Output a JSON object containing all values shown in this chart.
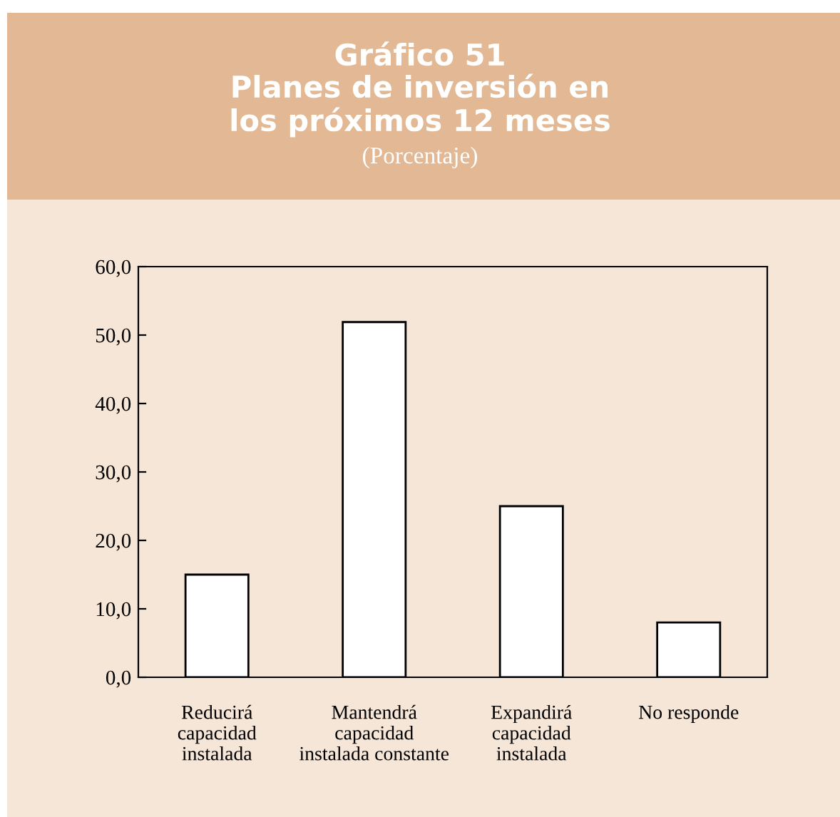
{
  "chart_data": {
    "type": "bar",
    "title": "Gráfico 51\nPlanes de inversión en\nlos próximos 12 meses",
    "subtitle": "(Porcentaje)",
    "categories": [
      "Reducirá\ncapacidad\ninstalada",
      "Mantendrá\ncapacidad\ninstalada constante",
      "Expandirá\ncapacidad\ninstalada",
      "No responde"
    ],
    "values": [
      15.0,
      51.9,
      25.0,
      8.0
    ],
    "color": "#ffffff",
    "ylim": [
      0,
      60
    ],
    "yticks": [
      {
        "value": 0,
        "label": "0,0"
      },
      {
        "value": 10,
        "label": "10,0"
      },
      {
        "value": 20,
        "label": "20,0"
      },
      {
        "value": 30,
        "label": "30,0"
      },
      {
        "value": 40,
        "label": "40,0"
      },
      {
        "value": 50,
        "label": "50,0"
      },
      {
        "value": 60,
        "label": "60,0"
      }
    ],
    "grid": false,
    "legend": false
  }
}
